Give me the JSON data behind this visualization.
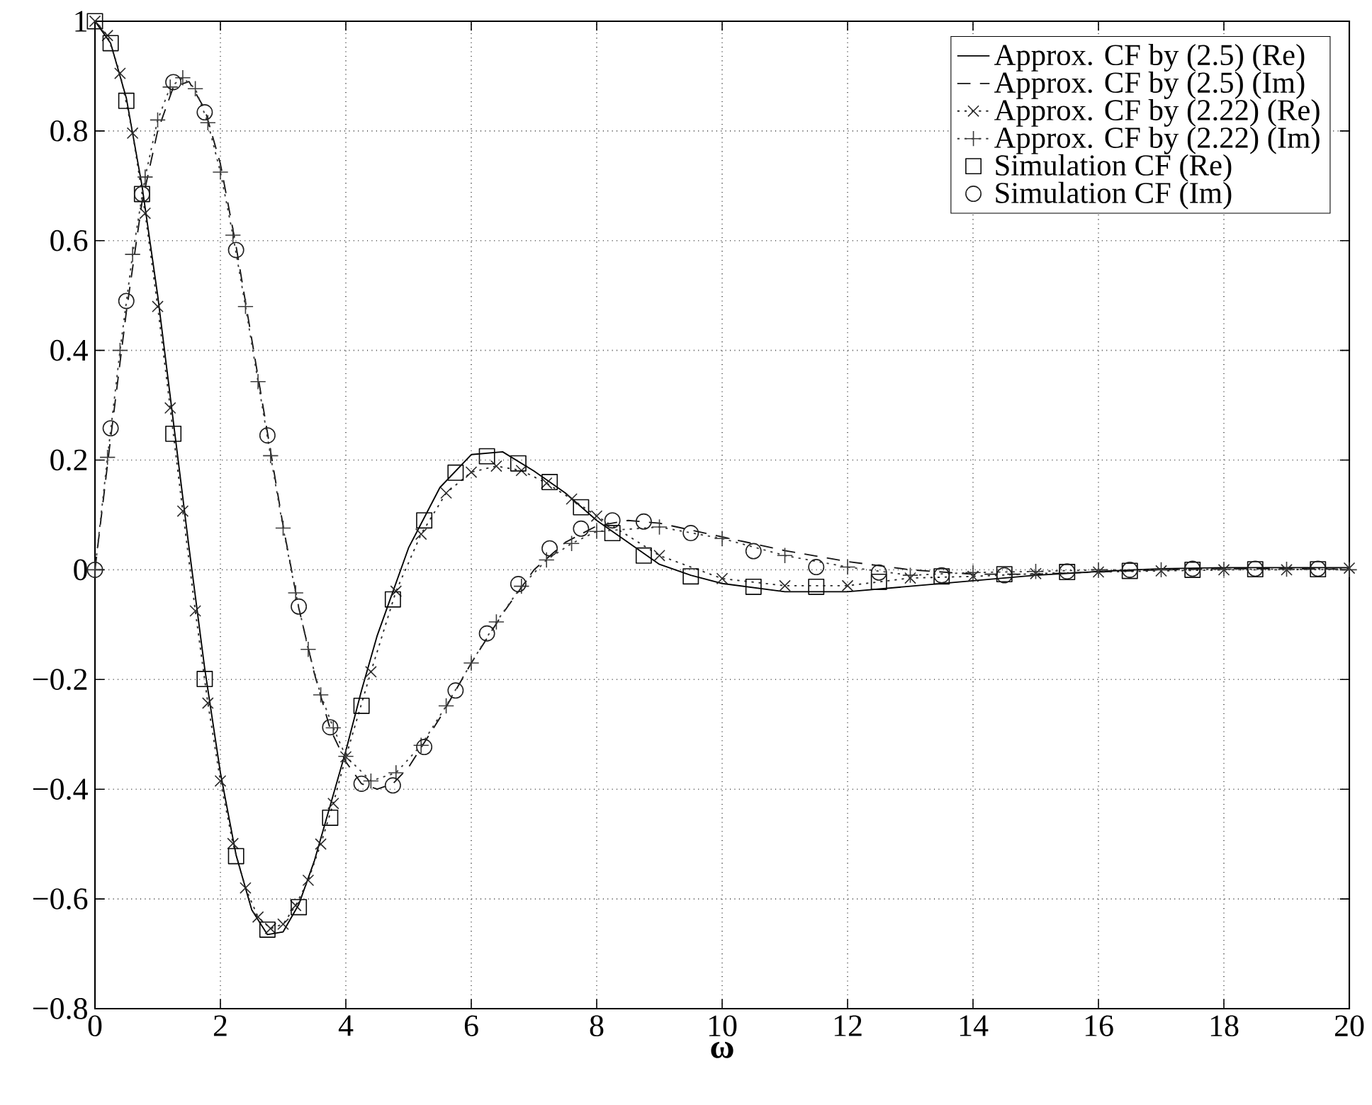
{
  "chart_data": {
    "type": "line",
    "xlabel": "ω",
    "xlim": [
      0,
      20
    ],
    "xticks": [
      0,
      2,
      4,
      6,
      8,
      10,
      12,
      14,
      16,
      18,
      20
    ],
    "ylim": [
      -0.8,
      1
    ],
    "yticks": [
      {
        "value": -0.8,
        "label": "−0.8"
      },
      {
        "value": -0.6,
        "label": "−0.6"
      },
      {
        "value": -0.4,
        "label": "−0.4"
      },
      {
        "value": -0.2,
        "label": "−0.2"
      },
      0,
      0.2,
      0.4,
      0.6,
      0.8,
      1
    ],
    "grid": true,
    "legend": "top right",
    "series": [
      {
        "name": "Approx. CF by (2.5) (Re)",
        "color": "#000000",
        "line_style": "solid",
        "marker": "none",
        "x": [
          0,
          0.25,
          0.5,
          0.75,
          1,
          1.25,
          1.5,
          1.75,
          2,
          2.25,
          2.5,
          2.75,
          3,
          3.25,
          3.5,
          3.75,
          4,
          4.25,
          4.5,
          4.75,
          5,
          5.5,
          6,
          6.5,
          7,
          7.5,
          8,
          8.5,
          9,
          9.5,
          10,
          11,
          12,
          13,
          14,
          15,
          16,
          17,
          18,
          19,
          20
        ],
        "values": [
          1,
          0.96,
          0.86,
          0.7,
          0.5,
          0.27,
          0.04,
          -0.18,
          -0.37,
          -0.52,
          -0.62,
          -0.665,
          -0.66,
          -0.61,
          -0.53,
          -0.43,
          -0.33,
          -0.22,
          -0.12,
          -0.04,
          0.04,
          0.15,
          0.21,
          0.215,
          0.18,
          0.14,
          0.09,
          0.05,
          0.01,
          -0.01,
          -0.025,
          -0.04,
          -0.04,
          -0.03,
          -0.02,
          -0.01,
          -0.003,
          0.002,
          0.004,
          0.004,
          0.004
        ]
      },
      {
        "name": "Approx. CF by (2.5) (Im)",
        "color": "#141414",
        "line_style": "dashed",
        "marker": "none",
        "x": [
          0,
          0.25,
          0.5,
          0.75,
          1,
          1.25,
          1.5,
          1.75,
          2,
          2.25,
          2.5,
          2.75,
          3,
          3.25,
          3.5,
          3.75,
          4,
          4.25,
          4.5,
          4.75,
          5,
          5.5,
          6,
          6.5,
          7,
          7.5,
          8,
          8.5,
          9,
          10,
          11,
          12,
          13,
          14,
          15,
          16,
          17,
          18,
          19,
          20
        ],
        "values": [
          0,
          0.24,
          0.47,
          0.67,
          0.8,
          0.88,
          0.89,
          0.84,
          0.74,
          0.59,
          0.42,
          0.25,
          0.08,
          -0.07,
          -0.19,
          -0.29,
          -0.35,
          -0.39,
          -0.4,
          -0.39,
          -0.36,
          -0.27,
          -0.17,
          -0.08,
          0,
          0.05,
          0.08,
          0.09,
          0.085,
          0.06,
          0.035,
          0.015,
          0,
          -0.008,
          -0.008,
          -0.004,
          0,
          0.002,
          0.002,
          0.001
        ]
      },
      {
        "name": "Approx. CF by (2.22) (Re)",
        "color": "#2a2a2a",
        "line_style": "dotted",
        "marker": "cross",
        "x": [
          0,
          0.2,
          0.4,
          0.6,
          0.8,
          1,
          1.2,
          1.4,
          1.6,
          1.8,
          2,
          2.2,
          2.4,
          2.6,
          2.8,
          3,
          3.2,
          3.4,
          3.6,
          3.8,
          4,
          4.4,
          4.8,
          5.2,
          5.6,
          6,
          6.4,
          6.8,
          7.2,
          7.6,
          8,
          9,
          10,
          11,
          12,
          13,
          14,
          15,
          16,
          17,
          18,
          19,
          20
        ],
        "values": [
          1,
          0.974,
          0.905,
          0.796,
          0.65,
          0.48,
          0.295,
          0.107,
          -0.075,
          -0.243,
          -0.385,
          -0.499,
          -0.58,
          -0.633,
          -0.654,
          -0.646,
          -0.612,
          -0.566,
          -0.5,
          -0.426,
          -0.341,
          -0.186,
          -0.039,
          0.065,
          0.14,
          0.178,
          0.189,
          0.181,
          0.158,
          0.129,
          0.098,
          0.026,
          -0.016,
          -0.029,
          -0.029,
          -0.015,
          -0.012,
          -0.007,
          -0.004,
          -0.002,
          0,
          0,
          0.003
        ]
      },
      {
        "name": "Approx. CF by (2.22) (Im)",
        "color": "#3c3c3c",
        "line_style": "dotted",
        "marker": "plus",
        "x": [
          0,
          0.2,
          0.4,
          0.6,
          0.8,
          1,
          1.2,
          1.4,
          1.6,
          1.8,
          2,
          2.2,
          2.4,
          2.6,
          2.8,
          3,
          3.2,
          3.4,
          3.6,
          3.8,
          4,
          4.4,
          4.8,
          5.2,
          5.6,
          6,
          6.4,
          6.8,
          7.2,
          7.6,
          8,
          9,
          10,
          11,
          12,
          13,
          14,
          15,
          16,
          17,
          18,
          19,
          20
        ],
        "values": [
          0,
          0.205,
          0.4,
          0.575,
          0.716,
          0.82,
          0.88,
          0.897,
          0.877,
          0.815,
          0.725,
          0.61,
          0.48,
          0.343,
          0.208,
          0.076,
          -0.042,
          -0.145,
          -0.228,
          -0.288,
          -0.34,
          -0.385,
          -0.37,
          -0.32,
          -0.248,
          -0.17,
          -0.095,
          -0.03,
          0.018,
          0.048,
          0.07,
          0.078,
          0.057,
          0.026,
          0.005,
          -0.01,
          -0.005,
          -0.003,
          0,
          0,
          0.001,
          0.001,
          0
        ]
      },
      {
        "name": "Simulation CF (Re)",
        "type": "scatter",
        "color": "#0a0a0a",
        "marker": "square",
        "x": [
          0,
          0.25,
          0.5,
          0.75,
          1.25,
          1.75,
          2.25,
          2.75,
          3.25,
          3.75,
          4.25,
          4.75,
          5.25,
          5.75,
          6.25,
          6.75,
          7.25,
          7.75,
          8.25,
          8.75,
          9.5,
          10.5,
          11.5,
          12.5,
          13.5,
          14.5,
          15.5,
          16.5,
          17.5,
          18.5,
          19.5
        ],
        "values": [
          1,
          0.96,
          0.855,
          0.685,
          0.248,
          -0.199,
          -0.522,
          -0.656,
          -0.615,
          -0.452,
          -0.248,
          -0.054,
          0.09,
          0.177,
          0.207,
          0.194,
          0.16,
          0.114,
          0.067,
          0.026,
          -0.012,
          -0.031,
          -0.031,
          -0.022,
          -0.012,
          -0.008,
          -0.004,
          -0.002,
          0,
          0.001,
          0.001
        ]
      },
      {
        "name": "Simulation CF (Im)",
        "type": "scatter",
        "color": "#202020",
        "marker": "circle",
        "x": [
          0,
          0.25,
          0.5,
          0.75,
          1.25,
          1.75,
          2.25,
          2.75,
          3.25,
          3.75,
          4.25,
          4.75,
          5.25,
          5.75,
          6.25,
          6.75,
          7.25,
          7.75,
          8.25,
          8.75,
          9.5,
          10.5,
          11.5,
          12.5,
          13.5,
          14.5,
          15.5,
          16.5,
          17.5,
          18.5,
          19.5
        ],
        "values": [
          0,
          0.258,
          0.49,
          0.685,
          0.889,
          0.834,
          0.583,
          0.245,
          -0.067,
          -0.287,
          -0.39,
          -0.393,
          -0.323,
          -0.22,
          -0.116,
          -0.026,
          0.039,
          0.075,
          0.09,
          0.088,
          0.067,
          0.034,
          0.005,
          -0.005,
          -0.01,
          -0.01,
          -0.003,
          0,
          0.002,
          0.002,
          0.002
        ]
      }
    ]
  }
}
